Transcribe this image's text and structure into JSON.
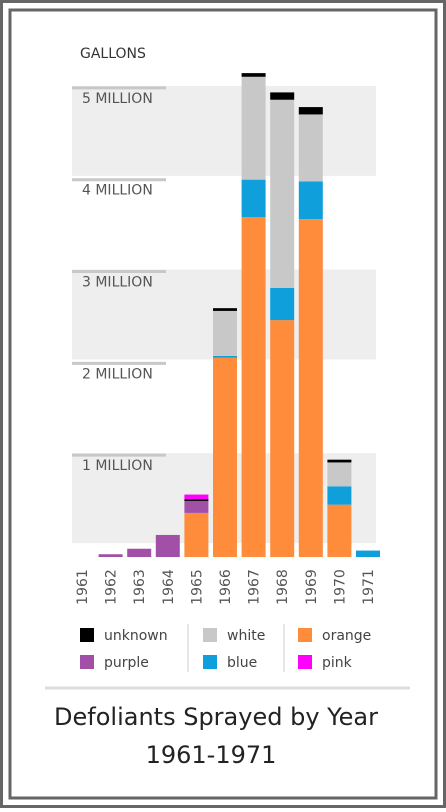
{
  "chart_data": {
    "type": "stacked-bar",
    "y_label": "GALLONS",
    "title": "Defoliants Sprayed by Year",
    "subtitle": "1961-1971",
    "categories": [
      "1961",
      "1962",
      "1963",
      "1964",
      "1965",
      "1966",
      "1967",
      "1968",
      "1969",
      "1970",
      "1971"
    ],
    "series": [
      {
        "name": "orange",
        "color": "#ff8c3a",
        "values": [
          0,
          0,
          0,
          0,
          480000,
          2170000,
          3700000,
          2580000,
          3680000,
          570000,
          0
        ]
      },
      {
        "name": "blue",
        "color": "#0fa0dc",
        "values": [
          0,
          0,
          0,
          0,
          0,
          20000,
          410000,
          350000,
          410000,
          200000,
          70000
        ]
      },
      {
        "name": "white",
        "color": "#c8c8c8",
        "values": [
          0,
          0,
          0,
          0,
          0,
          490000,
          1120000,
          2050000,
          730000,
          260000,
          0
        ]
      },
      {
        "name": "purple",
        "color": "#a24fa8",
        "values": [
          0,
          30000,
          90000,
          240000,
          130000,
          0,
          0,
          0,
          0,
          0,
          0
        ]
      },
      {
        "name": "unknown",
        "color": "#000000",
        "values": [
          0,
          0,
          0,
          0,
          20000,
          30000,
          40000,
          80000,
          80000,
          30000,
          0
        ]
      },
      {
        "name": "pink",
        "color": "#ff00ff",
        "values": [
          0,
          0,
          0,
          0,
          50000,
          0,
          0,
          0,
          0,
          0,
          0
        ]
      }
    ],
    "ylim": [
      0,
      5500000
    ],
    "yticks": [
      {
        "value": 1000000,
        "label": "1 MILLION"
      },
      {
        "value": 2000000,
        "label": "2 MILLION"
      },
      {
        "value": 3000000,
        "label": "3 MILLION"
      },
      {
        "value": 4000000,
        "label": "4 MILLION"
      },
      {
        "value": 5000000,
        "label": "5 MILLION"
      }
    ],
    "grid": true
  }
}
